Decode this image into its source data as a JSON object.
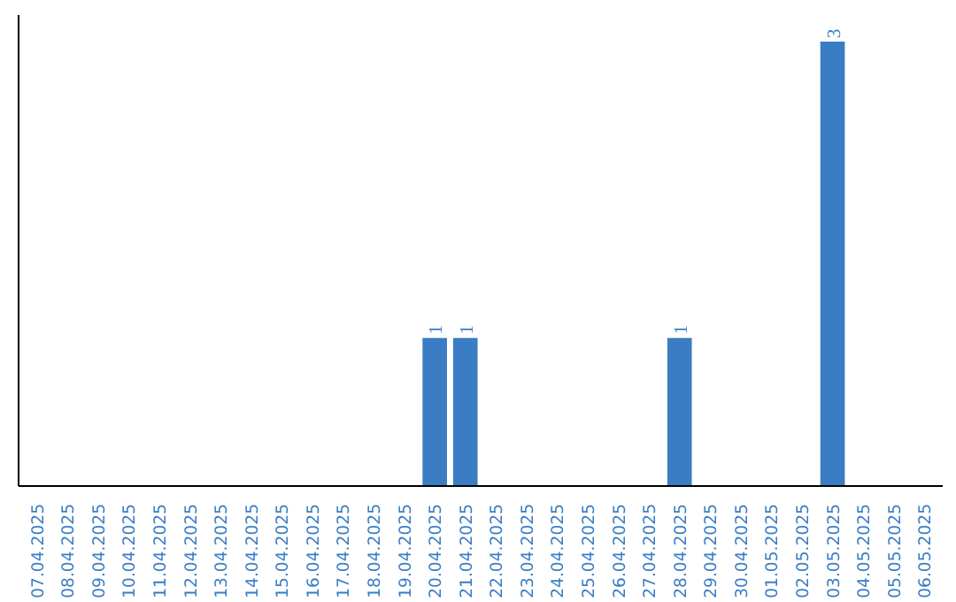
{
  "chart_data": {
    "type": "bar",
    "categories": [
      "07.04.2025",
      "08.04.2025",
      "09.04.2025",
      "10.04.2025",
      "11.04.2025",
      "12.04.2025",
      "13.04.2025",
      "14.04.2025",
      "15.04.2025",
      "16.04.2025",
      "17.04.2025",
      "18.04.2025",
      "19.04.2025",
      "20.04.2025",
      "21.04.2025",
      "22.04.2025",
      "23.04.2025",
      "24.04.2025",
      "25.04.2025",
      "26.04.2025",
      "27.04.2025",
      "28.04.2025",
      "29.04.2025",
      "30.04.2025",
      "01.05.2025",
      "02.05.2025",
      "03.05.2025",
      "04.05.2025",
      "05.05.2025",
      "06.05.2025"
    ],
    "values": [
      null,
      null,
      null,
      null,
      null,
      null,
      null,
      null,
      null,
      null,
      null,
      null,
      null,
      1,
      1,
      null,
      null,
      null,
      null,
      null,
      null,
      1,
      null,
      null,
      null,
      null,
      3,
      null,
      null,
      null
    ],
    "data_labels": true,
    "color": "#3a7dc4",
    "grid": false,
    "tick_labels": "x"
  }
}
